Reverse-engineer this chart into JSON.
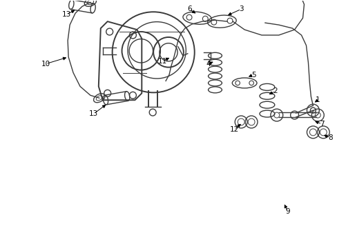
{
  "background_color": "#ffffff",
  "line_color": "#3a3a3a",
  "label_color": "#000000",
  "fig_width": 4.89,
  "fig_height": 3.6,
  "dpi": 100
}
